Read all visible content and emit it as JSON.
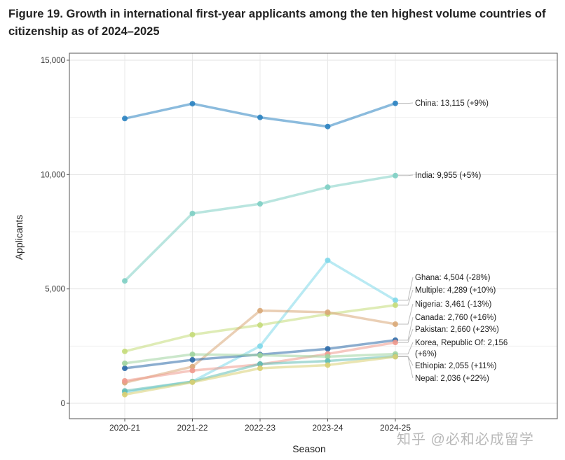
{
  "chart_data": {
    "type": "line",
    "title": "Figure 19. Growth in international first-year applicants among the ten highest volume countries of citizenship as of 2024–2025",
    "xlabel": "Season",
    "ylabel": "Applicants",
    "ylim": [
      0,
      15000
    ],
    "y_ticks": [
      0,
      5000,
      10000,
      15000
    ],
    "y_tick_labels": [
      "0",
      "5,000",
      "10,000",
      "15,000"
    ],
    "categories": [
      "2020-21",
      "2021-22",
      "2022-23",
      "2023-24",
      "2024-25"
    ],
    "grid": true,
    "legend": "end-labels-right",
    "series": [
      {
        "name": "China",
        "label": "China: 13,115 (+9%)",
        "color": "#2b83c1",
        "values": [
          12450,
          13100,
          12500,
          12100,
          13115
        ]
      },
      {
        "name": "India",
        "label": "India: 9,955 (+5%)",
        "color": "#7fcfc4",
        "values": [
          5350,
          8300,
          8720,
          9450,
          9955
        ]
      },
      {
        "name": "Ghana",
        "label": "Ghana: 4,504 (-28%)",
        "color": "#7fd8ea",
        "values": [
          480,
          950,
          2500,
          6250,
          4504
        ]
      },
      {
        "name": "Multiple",
        "label": "Multiple: 4,289 (+10%)",
        "color": "#c5dc7a",
        "values": [
          2270,
          3000,
          3420,
          3900,
          4289
        ]
      },
      {
        "name": "Nigeria",
        "label": "Nigeria: 3,461 (-13%)",
        "color": "#d9a878",
        "values": [
          900,
          1600,
          4050,
          3980,
          3461
        ]
      },
      {
        "name": "Canada",
        "label": "Canada: 2,760 (+16%)",
        "color": "#2c6aa8",
        "values": [
          1530,
          1900,
          2130,
          2380,
          2760
        ]
      },
      {
        "name": "Pakistan",
        "label": "Pakistan: 2,660 (+23%)",
        "color": "#ef9a8e",
        "values": [
          980,
          1430,
          1700,
          2160,
          2660
        ]
      },
      {
        "name": "Korea, Republic Of",
        "label": "Korea, Republic Of: 2,156",
        "label2": "(+6%)",
        "color": "#a0d4a0",
        "values": [
          1750,
          2140,
          2100,
          2040,
          2156
        ]
      },
      {
        "name": "Ethiopia",
        "label": "Ethiopia: 2,055 (+11%)",
        "color": "#62bdb5",
        "values": [
          540,
          950,
          1720,
          1850,
          2055
        ]
      },
      {
        "name": "Nepal",
        "label": "Nepal: 2,036 (+22%)",
        "color": "#d8cf73",
        "values": [
          380,
          920,
          1530,
          1670,
          2036
        ]
      }
    ]
  },
  "watermark": "知乎 @必和必成留学"
}
